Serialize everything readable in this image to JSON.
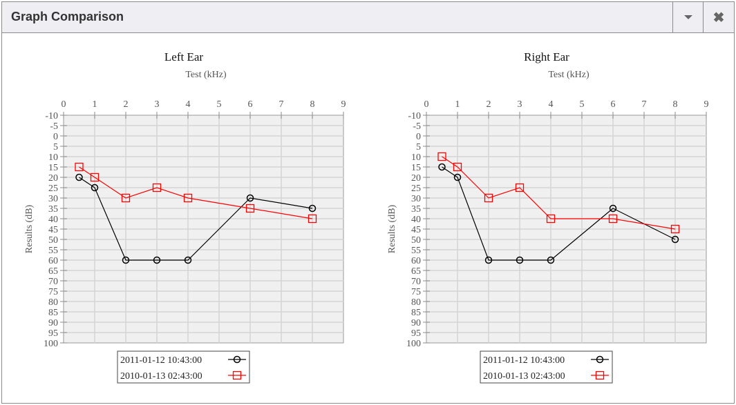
{
  "window": {
    "title": "Graph Comparison",
    "menu_icon": "caret-down-icon",
    "close_icon": "close-icon"
  },
  "colors": {
    "series1": "#000000",
    "series2": "#ff0000",
    "plot_bg": "#f0f0f0",
    "grid": "#d4d4d4"
  },
  "chart_data": [
    {
      "type": "line",
      "title": "Left Ear",
      "xlabel": "Test (kHz)",
      "ylabel": "Results (dB)",
      "xlim": [
        0,
        9
      ],
      "ylim": [
        -10,
        100
      ],
      "y_inverted": true,
      "x_axis_position": "top",
      "grid": true,
      "legend": "bottom-left",
      "xticks": [
        0,
        1,
        2,
        3,
        4,
        5,
        6,
        7,
        8,
        9
      ],
      "yticks": [
        -10,
        -5,
        0,
        5,
        10,
        15,
        20,
        25,
        30,
        35,
        40,
        45,
        50,
        55,
        60,
        65,
        70,
        75,
        80,
        85,
        90,
        95,
        100
      ],
      "x": [
        0.5,
        1,
        2,
        3,
        4,
        6,
        8
      ],
      "series": [
        {
          "name": "2011-01-12 10:43:00",
          "marker": "circle",
          "color": "#000000",
          "values": [
            20,
            25,
            60,
            60,
            60,
            30,
            35
          ]
        },
        {
          "name": "2010-01-13 02:43:00",
          "marker": "square",
          "color": "#ff0000",
          "values": [
            15,
            20,
            30,
            25,
            30,
            35,
            40
          ]
        }
      ]
    },
    {
      "type": "line",
      "title": "Right Ear",
      "xlabel": "Test (kHz)",
      "ylabel": "Results (dB)",
      "xlim": [
        0,
        9
      ],
      "ylim": [
        -10,
        100
      ],
      "y_inverted": true,
      "x_axis_position": "top",
      "grid": true,
      "legend": "bottom-left",
      "xticks": [
        0,
        1,
        2,
        3,
        4,
        5,
        6,
        7,
        8,
        9
      ],
      "yticks": [
        -10,
        -5,
        0,
        5,
        10,
        15,
        20,
        25,
        30,
        35,
        40,
        45,
        50,
        55,
        60,
        65,
        70,
        75,
        80,
        85,
        90,
        95,
        100
      ],
      "x": [
        0.5,
        1,
        2,
        3,
        4,
        6,
        8
      ],
      "series": [
        {
          "name": "2011-01-12 10:43:00",
          "marker": "circle",
          "color": "#000000",
          "values": [
            15,
            20,
            60,
            60,
            60,
            35,
            50
          ]
        },
        {
          "name": "2010-01-13 02:43:00",
          "marker": "square",
          "color": "#ff0000",
          "values": [
            10,
            15,
            30,
            25,
            40,
            40,
            45
          ]
        }
      ]
    }
  ]
}
